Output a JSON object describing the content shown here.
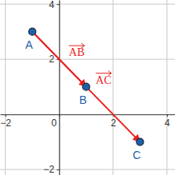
{
  "chart_data": {
    "type": "scatter",
    "labels": [
      "A",
      "B",
      "C"
    ],
    "x": [
      -1,
      1,
      3
    ],
    "y": [
      3,
      1,
      -1
    ],
    "color": "#1f5fa8",
    "vectors": [
      {
        "label": "AB",
        "from": "A",
        "to": "B",
        "color": "#e8231f"
      },
      {
        "label": "AC",
        "from": "A",
        "to": "C",
        "color": "#e8231f"
      }
    ],
    "xlim": [
      -2.2,
      4.3
    ],
    "ylim": [
      -2.2,
      4.15
    ],
    "xticks": [
      -2,
      0,
      2,
      4
    ],
    "yticks": [
      -2,
      2,
      4
    ],
    "grid": true
  }
}
